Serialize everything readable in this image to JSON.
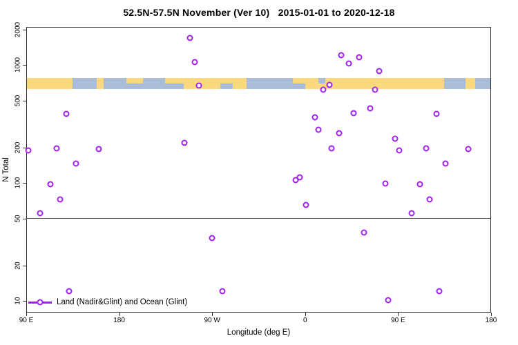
{
  "title": "52.5N-57.5N November (Ver 10)   2015-01-01 to 2020-12-18",
  "axes": {
    "x_label": "Longitude (deg E)",
    "y_label": "N Total",
    "x_ticks": [
      {
        "deg": 0,
        "label": "90 E"
      },
      {
        "deg": 90,
        "label": "180"
      },
      {
        "deg": 180,
        "label": "90 W"
      },
      {
        "deg": 270,
        "label": "0"
      },
      {
        "deg": 360,
        "label": "90 E"
      },
      {
        "deg": 450,
        "label": "180"
      }
    ],
    "y_ticks": [
      {
        "value": 2000,
        "label": "2000"
      },
      {
        "value": 1000,
        "label": "1000"
      },
      {
        "value": 500,
        "label": "500"
      },
      {
        "value": 200,
        "label": "200"
      },
      {
        "value": 100,
        "label": "100"
      },
      {
        "value": 50,
        "label": "50"
      },
      {
        "value": 20,
        "label": "20"
      },
      {
        "value": 10,
        "label": "10"
      }
    ]
  },
  "legend": {
    "label": "Land (Nadir&Glint) and Ocean (Glint)"
  },
  "colors": {
    "point": "#A020F0",
    "land": "#FAD97E",
    "ocean": "#A9BDD9",
    "refline": "#4a4a4a",
    "axis": "#2f2f2f"
  },
  "chart_data": {
    "type": "scatter",
    "title": "52.5N-57.5N November (Ver 10)   2015-01-01 to 2020-12-18",
    "xlabel": "Longitude (deg E)",
    "ylabel": "N Total",
    "y_scale": "log",
    "x_span_deg": 450,
    "x_axis_note": "x axis wraps: 90E -> 180 -> 90W -> 0 -> 90E -> 180; deg = degrees east of left edge (90E)",
    "y_top": 2110,
    "y_bottom": 7.96,
    "refline_n": 50,
    "points": [
      {
        "deg": 1.3,
        "n": 190
      },
      {
        "deg": 12.7,
        "n": 55
      },
      {
        "deg": 22.8,
        "n": 97
      },
      {
        "deg": 28.8,
        "n": 196
      },
      {
        "deg": 32.1,
        "n": 72
      },
      {
        "deg": 38.2,
        "n": 390
      },
      {
        "deg": 40.8,
        "n": 12
      },
      {
        "deg": 47.5,
        "n": 147
      },
      {
        "deg": 69.6,
        "n": 194
      },
      {
        "deg": 152.7,
        "n": 219
      },
      {
        "deg": 158.0,
        "n": 1725
      },
      {
        "deg": 162.7,
        "n": 1075
      },
      {
        "deg": 166.7,
        "n": 680
      },
      {
        "deg": 179.4,
        "n": 34
      },
      {
        "deg": 189.5,
        "n": 12
      },
      {
        "deg": 261.1,
        "n": 106
      },
      {
        "deg": 265.2,
        "n": 111
      },
      {
        "deg": 271.2,
        "n": 65
      },
      {
        "deg": 279.9,
        "n": 361
      },
      {
        "deg": 283.2,
        "n": 283
      },
      {
        "deg": 287.9,
        "n": 620
      },
      {
        "deg": 293.9,
        "n": 683
      },
      {
        "deg": 296.0,
        "n": 196
      },
      {
        "deg": 303.3,
        "n": 266
      },
      {
        "deg": 305.3,
        "n": 1220
      },
      {
        "deg": 312.7,
        "n": 1040
      },
      {
        "deg": 317.4,
        "n": 392
      },
      {
        "deg": 322.7,
        "n": 1175
      },
      {
        "deg": 327.4,
        "n": 38
      },
      {
        "deg": 333.5,
        "n": 430
      },
      {
        "deg": 338.1,
        "n": 620
      },
      {
        "deg": 342.2,
        "n": 895
      },
      {
        "deg": 348.2,
        "n": 99
      },
      {
        "deg": 350.9,
        "n": 10
      },
      {
        "deg": 357.6,
        "n": 238
      },
      {
        "deg": 361.6,
        "n": 190
      },
      {
        "deg": 373.6,
        "n": 55
      },
      {
        "deg": 381.7,
        "n": 97
      },
      {
        "deg": 387.7,
        "n": 196
      },
      {
        "deg": 391.1,
        "n": 72
      },
      {
        "deg": 397.7,
        "n": 390
      },
      {
        "deg": 400.4,
        "n": 12
      },
      {
        "deg": 406.5,
        "n": 147
      },
      {
        "deg": 428.6,
        "n": 194
      }
    ],
    "map_strip": {
      "description": "world land/ocean strip for 52.5N-57.5N drawn across plot",
      "n_top": 790,
      "n_bottom": 636,
      "segments": [
        {
          "d0": 0,
          "d1": 44.2,
          "type": "land"
        },
        {
          "d0": 44.2,
          "d1": 67.6,
          "type": "ocean"
        },
        {
          "d0": 67.6,
          "d1": 74.3,
          "type": "land"
        },
        {
          "d0": 74.3,
          "d1": 96.4,
          "type": "ocean"
        },
        {
          "d0": 96.4,
          "d1": 112.5,
          "type": "land-top"
        },
        {
          "d0": 112.5,
          "d1": 133.9,
          "type": "ocean"
        },
        {
          "d0": 133.9,
          "d1": 152.0,
          "type": "land-top"
        },
        {
          "d0": 152.0,
          "d1": 188.0,
          "type": "land"
        },
        {
          "d0": 188.0,
          "d1": 200.0,
          "type": "land-top"
        },
        {
          "d0": 200.0,
          "d1": 213.0,
          "type": "land"
        },
        {
          "d0": 213.0,
          "d1": 258.5,
          "type": "ocean"
        },
        {
          "d0": 258.5,
          "d1": 270.0,
          "type": "land-top"
        },
        {
          "d0": 270.0,
          "d1": 283.0,
          "type": "land"
        },
        {
          "d0": 283.0,
          "d1": 290.0,
          "type": "ocean-top"
        },
        {
          "d0": 290.0,
          "d1": 405.0,
          "type": "land"
        },
        {
          "d0": 405.0,
          "d1": 426.0,
          "type": "ocean"
        },
        {
          "d0": 426.0,
          "d1": 435.0,
          "type": "land"
        },
        {
          "d0": 435.0,
          "d1": 450.0,
          "type": "ocean"
        }
      ]
    }
  }
}
